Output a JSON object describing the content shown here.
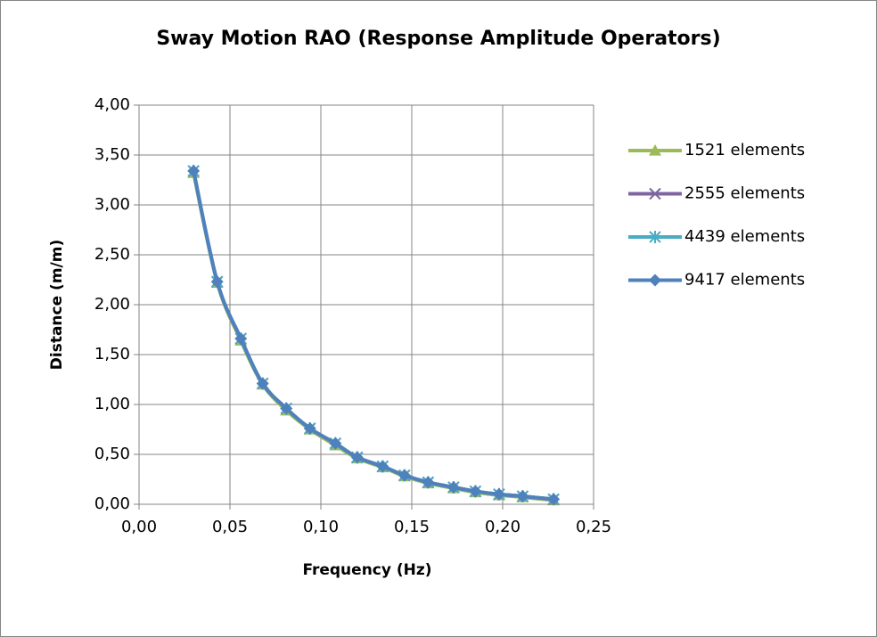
{
  "chart_data": {
    "type": "line",
    "title": "Sway Motion RAO (Response Amplitude Operators)",
    "xlabel": "Frequency (Hz)",
    "ylabel": "Distance (m/m)",
    "x": [
      0.03,
      0.043,
      0.056,
      0.068,
      0.081,
      0.094,
      0.108,
      0.12,
      0.134,
      0.146,
      0.159,
      0.173,
      0.185,
      0.198,
      0.211,
      0.228
    ],
    "series": [
      {
        "name": "1521 elements",
        "color": "#9bbb59",
        "marker": "triangle",
        "values": [
          3.32,
          2.22,
          1.64,
          1.2,
          0.94,
          0.75,
          0.59,
          0.46,
          0.37,
          0.28,
          0.21,
          0.16,
          0.12,
          0.09,
          0.07,
          0.04
        ]
      },
      {
        "name": "2555 elements",
        "color": "#8064a2",
        "marker": "x",
        "values": [
          3.34,
          2.23,
          1.66,
          1.21,
          0.96,
          0.76,
          0.61,
          0.47,
          0.38,
          0.29,
          0.22,
          0.17,
          0.13,
          0.1,
          0.08,
          0.05
        ]
      },
      {
        "name": "4439 elements",
        "color": "#4bacc6",
        "marker": "asterisk",
        "values": [
          3.34,
          2.23,
          1.66,
          1.21,
          0.96,
          0.76,
          0.61,
          0.47,
          0.38,
          0.29,
          0.22,
          0.17,
          0.13,
          0.1,
          0.08,
          0.05
        ]
      },
      {
        "name": "9417 elements",
        "color": "#4f81bd",
        "marker": "diamond",
        "values": [
          3.34,
          2.23,
          1.66,
          1.21,
          0.96,
          0.76,
          0.61,
          0.47,
          0.38,
          0.29,
          0.22,
          0.17,
          0.13,
          0.1,
          0.08,
          0.05
        ]
      }
    ],
    "xlim": [
      0,
      0.25
    ],
    "xticks": [
      {
        "value": 0,
        "label": "0,00"
      },
      {
        "value": 0.05,
        "label": "0,05"
      },
      {
        "value": 0.1,
        "label": "0,10"
      },
      {
        "value": 0.15,
        "label": "0,15"
      },
      {
        "value": 0.2,
        "label": "0,20"
      },
      {
        "value": 0.25,
        "label": "0,25"
      }
    ],
    "ylim": [
      0,
      4
    ],
    "yticks": [
      {
        "value": 0,
        "label": "0,00"
      },
      {
        "value": 0.5,
        "label": "0,50"
      },
      {
        "value": 1,
        "label": "1,00"
      },
      {
        "value": 1.5,
        "label": "1,50"
      },
      {
        "value": 2,
        "label": "2,00"
      },
      {
        "value": 2.5,
        "label": "2,50"
      },
      {
        "value": 3,
        "label": "3,00"
      },
      {
        "value": 3.5,
        "label": "3,50"
      },
      {
        "value": 4,
        "label": "4,00"
      }
    ],
    "grid": true,
    "legend": "right"
  }
}
